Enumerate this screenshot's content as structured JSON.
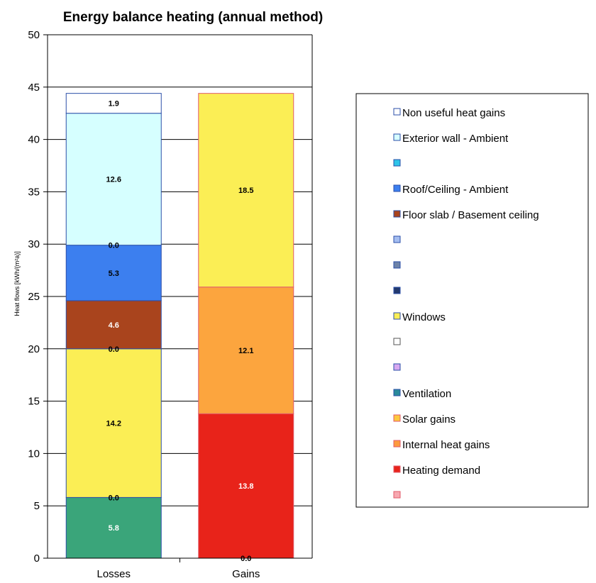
{
  "chart_data": {
    "type": "bar",
    "stacked": true,
    "title": "Energy balance heating (annual method)",
    "xlabel": "",
    "ylabel": "Heat flows [kWh/(m²a)]",
    "ylim": [
      0,
      50
    ],
    "yticks": [
      0,
      5,
      10,
      15,
      20,
      25,
      30,
      35,
      40,
      45,
      50
    ],
    "grid": true,
    "legend_position": "right",
    "categories": [
      "Losses",
      "Gains"
    ],
    "stacks": [
      {
        "category": "Losses",
        "segments": [
          {
            "value": 5.8,
            "label": "5.8",
            "fill": "#3aa57a",
            "stroke": "#2b4fa8",
            "label_color": "#ffffff"
          },
          {
            "value": 0.0,
            "label": "0.0",
            "fill": "#ffffff",
            "stroke": "#2b4fa8",
            "label_color": "#000000"
          },
          {
            "value": 14.2,
            "label": "14.2",
            "fill": "#fbee55",
            "stroke": "#2b4fa8",
            "label_color": "#000000"
          },
          {
            "value": 0.0,
            "label": "0.0",
            "fill": "#ffffff",
            "stroke": "#2b4fa8",
            "label_color": "#000000"
          },
          {
            "value": 4.6,
            "label": "4.6",
            "fill": "#a9441d",
            "stroke": "#2b4fa8",
            "label_color": "#ffffff"
          },
          {
            "value": 5.3,
            "label": "5.3",
            "fill": "#3c7fef",
            "stroke": "#2b4fa8",
            "label_color": "#000000"
          },
          {
            "value": 0.0,
            "label": "0.0",
            "fill": "#ffffff",
            "stroke": "#2b4fa8",
            "label_color": "#000000"
          },
          {
            "value": 12.6,
            "label": "12.6",
            "fill": "#d6ffff",
            "stroke": "#2b4fa8",
            "label_color": "#000000"
          },
          {
            "value": 1.9,
            "label": "1.9",
            "fill": "#ffffff",
            "stroke": "#2b4fa8",
            "label_color": "#000000"
          }
        ]
      },
      {
        "category": "Gains",
        "segments": [
          {
            "value": 0.0,
            "label": "0.0",
            "fill": "#ffffff",
            "stroke": "#e05a6a",
            "label_color": "#000000"
          },
          {
            "value": 13.8,
            "label": "13.8",
            "fill": "#e8231a",
            "stroke": "#e05a6a",
            "label_color": "#ffffff"
          },
          {
            "value": 12.1,
            "label": "12.1",
            "fill": "#fca53e",
            "stroke": "#e05a6a",
            "label_color": "#000000"
          },
          {
            "value": 18.5,
            "label": "18.5",
            "fill": "#fbee55",
            "stroke": "#e05a6a",
            "label_color": "#000000"
          }
        ]
      }
    ],
    "legend": [
      {
        "label": "Non useful heat gains",
        "color": "#ffffff",
        "border": "#2b4fa8"
      },
      {
        "label": "Exterior wall - Ambient",
        "color": "#d6ffff",
        "border": "#2b4fa8"
      },
      {
        "label": "",
        "color": "#2ec4e8",
        "border": "#2b4fa8"
      },
      {
        "label": "Roof/Ceiling - Ambient",
        "color": "#3c7fef",
        "border": "#2b4fa8"
      },
      {
        "label": "Floor slab / Basement ceiling",
        "color": "#a9441d",
        "border": "#2b4fa8"
      },
      {
        "label": "",
        "color": "#a4bdf0",
        "border": "#2b4fa8"
      },
      {
        "label": "",
        "color": "#6d83a8",
        "border": "#2b4fa8"
      },
      {
        "label": "",
        "color": "#233a6e",
        "border": "#2b4fa8"
      },
      {
        "label": "Windows",
        "color": "#fbee55",
        "border": "#2b4fa8"
      },
      {
        "label": "",
        "color": "#ffffff",
        "border": "#555555"
      },
      {
        "label": "",
        "color": "#d8a8f0",
        "border": "#2b4fa8"
      },
      {
        "label": "Ventilation",
        "color": "#2a8a9a",
        "border": "#2b4fa8"
      },
      {
        "label": "Solar gains",
        "color": "#fcc93e",
        "border": "#e05a6a"
      },
      {
        "label": "Internal heat gains",
        "color": "#fc9a3e",
        "border": "#e05a6a"
      },
      {
        "label": "Heating demand",
        "color": "#e8231a",
        "border": "#e05a6a"
      },
      {
        "label": "",
        "color": "#f7a8b0",
        "border": "#e05a6a"
      }
    ]
  }
}
